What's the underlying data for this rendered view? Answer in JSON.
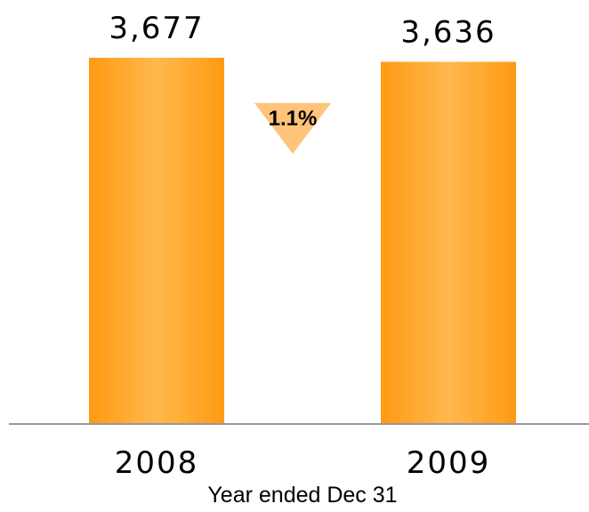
{
  "chart_data": {
    "type": "bar",
    "categories": [
      "2008",
      "2009"
    ],
    "values": [
      3677,
      3636
    ],
    "data_labels": [
      "3,677",
      "3,636"
    ],
    "xlabel": "Year ended Dec 31",
    "ylabel": "",
    "title": "",
    "change": {
      "label": "1.1%",
      "direction": "down"
    },
    "bar_color": "#FF9A12",
    "bar_highlight_color": "#FFB84D",
    "change_marker_color": "#FFC37A",
    "axis_color": "#999999",
    "grid": false
  }
}
